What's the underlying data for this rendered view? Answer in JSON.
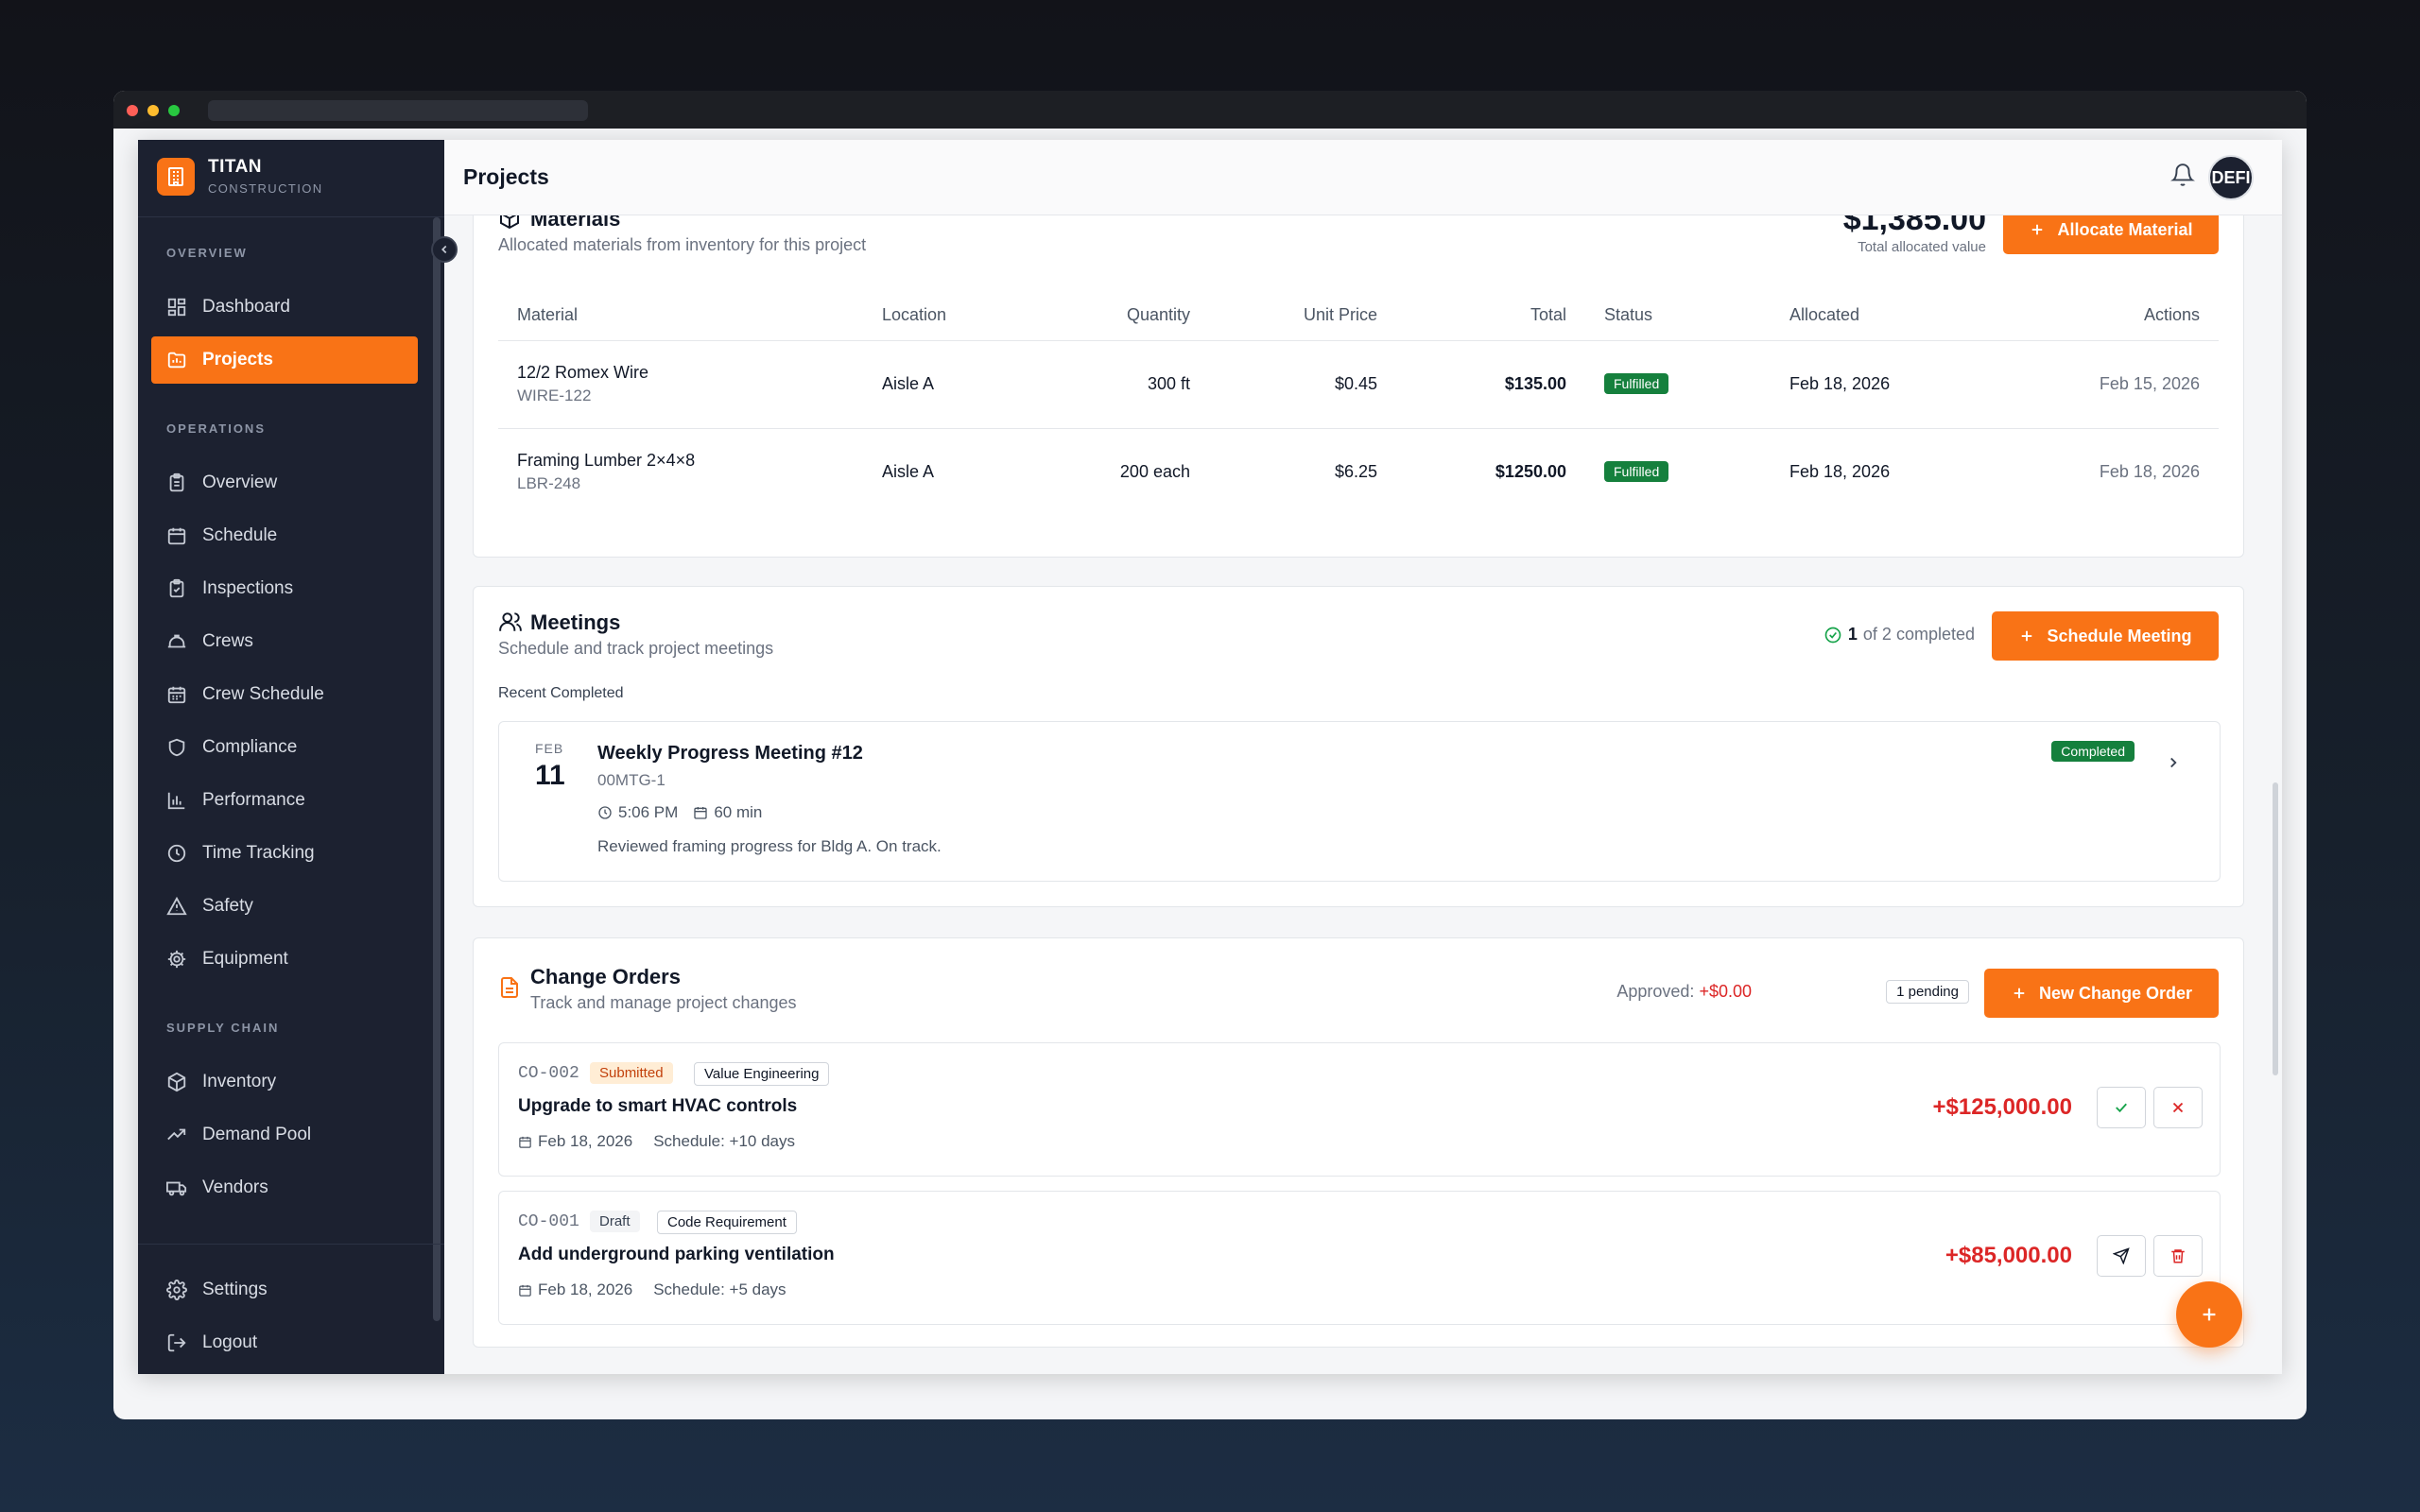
{
  "brand": {
    "name": "TITAN",
    "sub": "CONSTRUCTION"
  },
  "sidebar": {
    "sections": [
      {
        "label": "OVERVIEW"
      },
      {
        "label": "OPERATIONS"
      },
      {
        "label": "SUPPLY CHAIN"
      }
    ],
    "items": [
      {
        "label": "Dashboard",
        "icon": "dashboard-icon"
      },
      {
        "label": "Projects",
        "icon": "projects-icon",
        "active": true
      },
      {
        "label": "Overview",
        "icon": "clipboard-icon"
      },
      {
        "label": "Schedule",
        "icon": "calendar-icon"
      },
      {
        "label": "Inspections",
        "icon": "clipboard-check-icon"
      },
      {
        "label": "Crews",
        "icon": "hard-hat-icon"
      },
      {
        "label": "Crew Schedule",
        "icon": "calendar-grid-icon"
      },
      {
        "label": "Compliance",
        "icon": "shield-icon"
      },
      {
        "label": "Performance",
        "icon": "bar-chart-icon"
      },
      {
        "label": "Time Tracking",
        "icon": "clock-icon"
      },
      {
        "label": "Safety",
        "icon": "warning-icon"
      },
      {
        "label": "Equipment",
        "icon": "cog-icon"
      },
      {
        "label": "Inventory",
        "icon": "box-icon"
      },
      {
        "label": "Demand Pool",
        "icon": "trend-icon"
      },
      {
        "label": "Vendors",
        "icon": "truck-icon"
      }
    ],
    "bottom": [
      {
        "label": "Settings",
        "icon": "gear-icon"
      },
      {
        "label": "Logout",
        "icon": "logout-icon"
      }
    ]
  },
  "header": {
    "title": "Projects",
    "avatar": "DEFI"
  },
  "materials": {
    "title": "Materials",
    "subtitle": "Allocated materials from inventory for this project",
    "total": "$1,385.00",
    "total_label": "Total allocated value",
    "button": "Allocate Material",
    "columns": [
      "Material",
      "Location",
      "Quantity",
      "Unit Price",
      "Total",
      "Status",
      "Allocated",
      "Actions"
    ],
    "rows": [
      {
        "name": "12/2 Romex Wire",
        "sku": "WIRE-122",
        "location": "Aisle A",
        "qty": "300 ft",
        "unit": "$0.45",
        "total": "$135.00",
        "status": "Fulfilled",
        "allocated": "Feb 18, 2026",
        "actions": "Feb 15, 2026"
      },
      {
        "name": "Framing Lumber 2×4×8",
        "sku": "LBR-248",
        "location": "Aisle A",
        "qty": "200 each",
        "unit": "$6.25",
        "total": "$1250.00",
        "status": "Fulfilled",
        "allocated": "Feb 18, 2026",
        "actions": "Feb 18, 2026"
      }
    ]
  },
  "meetings": {
    "title": "Meetings",
    "subtitle": "Schedule and track project meetings",
    "completed_count": "1",
    "completed_text": "of 2 completed",
    "button": "Schedule Meeting",
    "recent_label": "Recent Completed",
    "item": {
      "month": "FEB",
      "day": "11",
      "title": "Weekly Progress Meeting #12",
      "code": "00MTG-1",
      "time": "5:06 PM",
      "duration": "60 min",
      "notes": "Reviewed framing progress for Bldg A. On track.",
      "status": "Completed"
    }
  },
  "change_orders": {
    "title": "Change Orders",
    "subtitle": "Track and manage project changes",
    "approved_label": "Approved:",
    "approved_value": "+$0.00",
    "pending": "1 pending",
    "button": "New Change Order",
    "items": [
      {
        "code": "CO-002",
        "status": "Submitted",
        "category": "Value Engineering",
        "title": "Upgrade to smart HVAC controls",
        "date": "Feb 18, 2026",
        "schedule": "Schedule: +10 days",
        "amount": "+$125,000.00"
      },
      {
        "code": "CO-001",
        "status": "Draft",
        "category": "Code Requirement",
        "title": "Add underground parking ventilation",
        "date": "Feb 18, 2026",
        "schedule": "Schedule: +5 days",
        "amount": "+$85,000.00"
      }
    ]
  },
  "colors": {
    "accent": "#f97316",
    "sidebar": "#1c2130",
    "success": "#15803d",
    "danger": "#dc2626"
  }
}
